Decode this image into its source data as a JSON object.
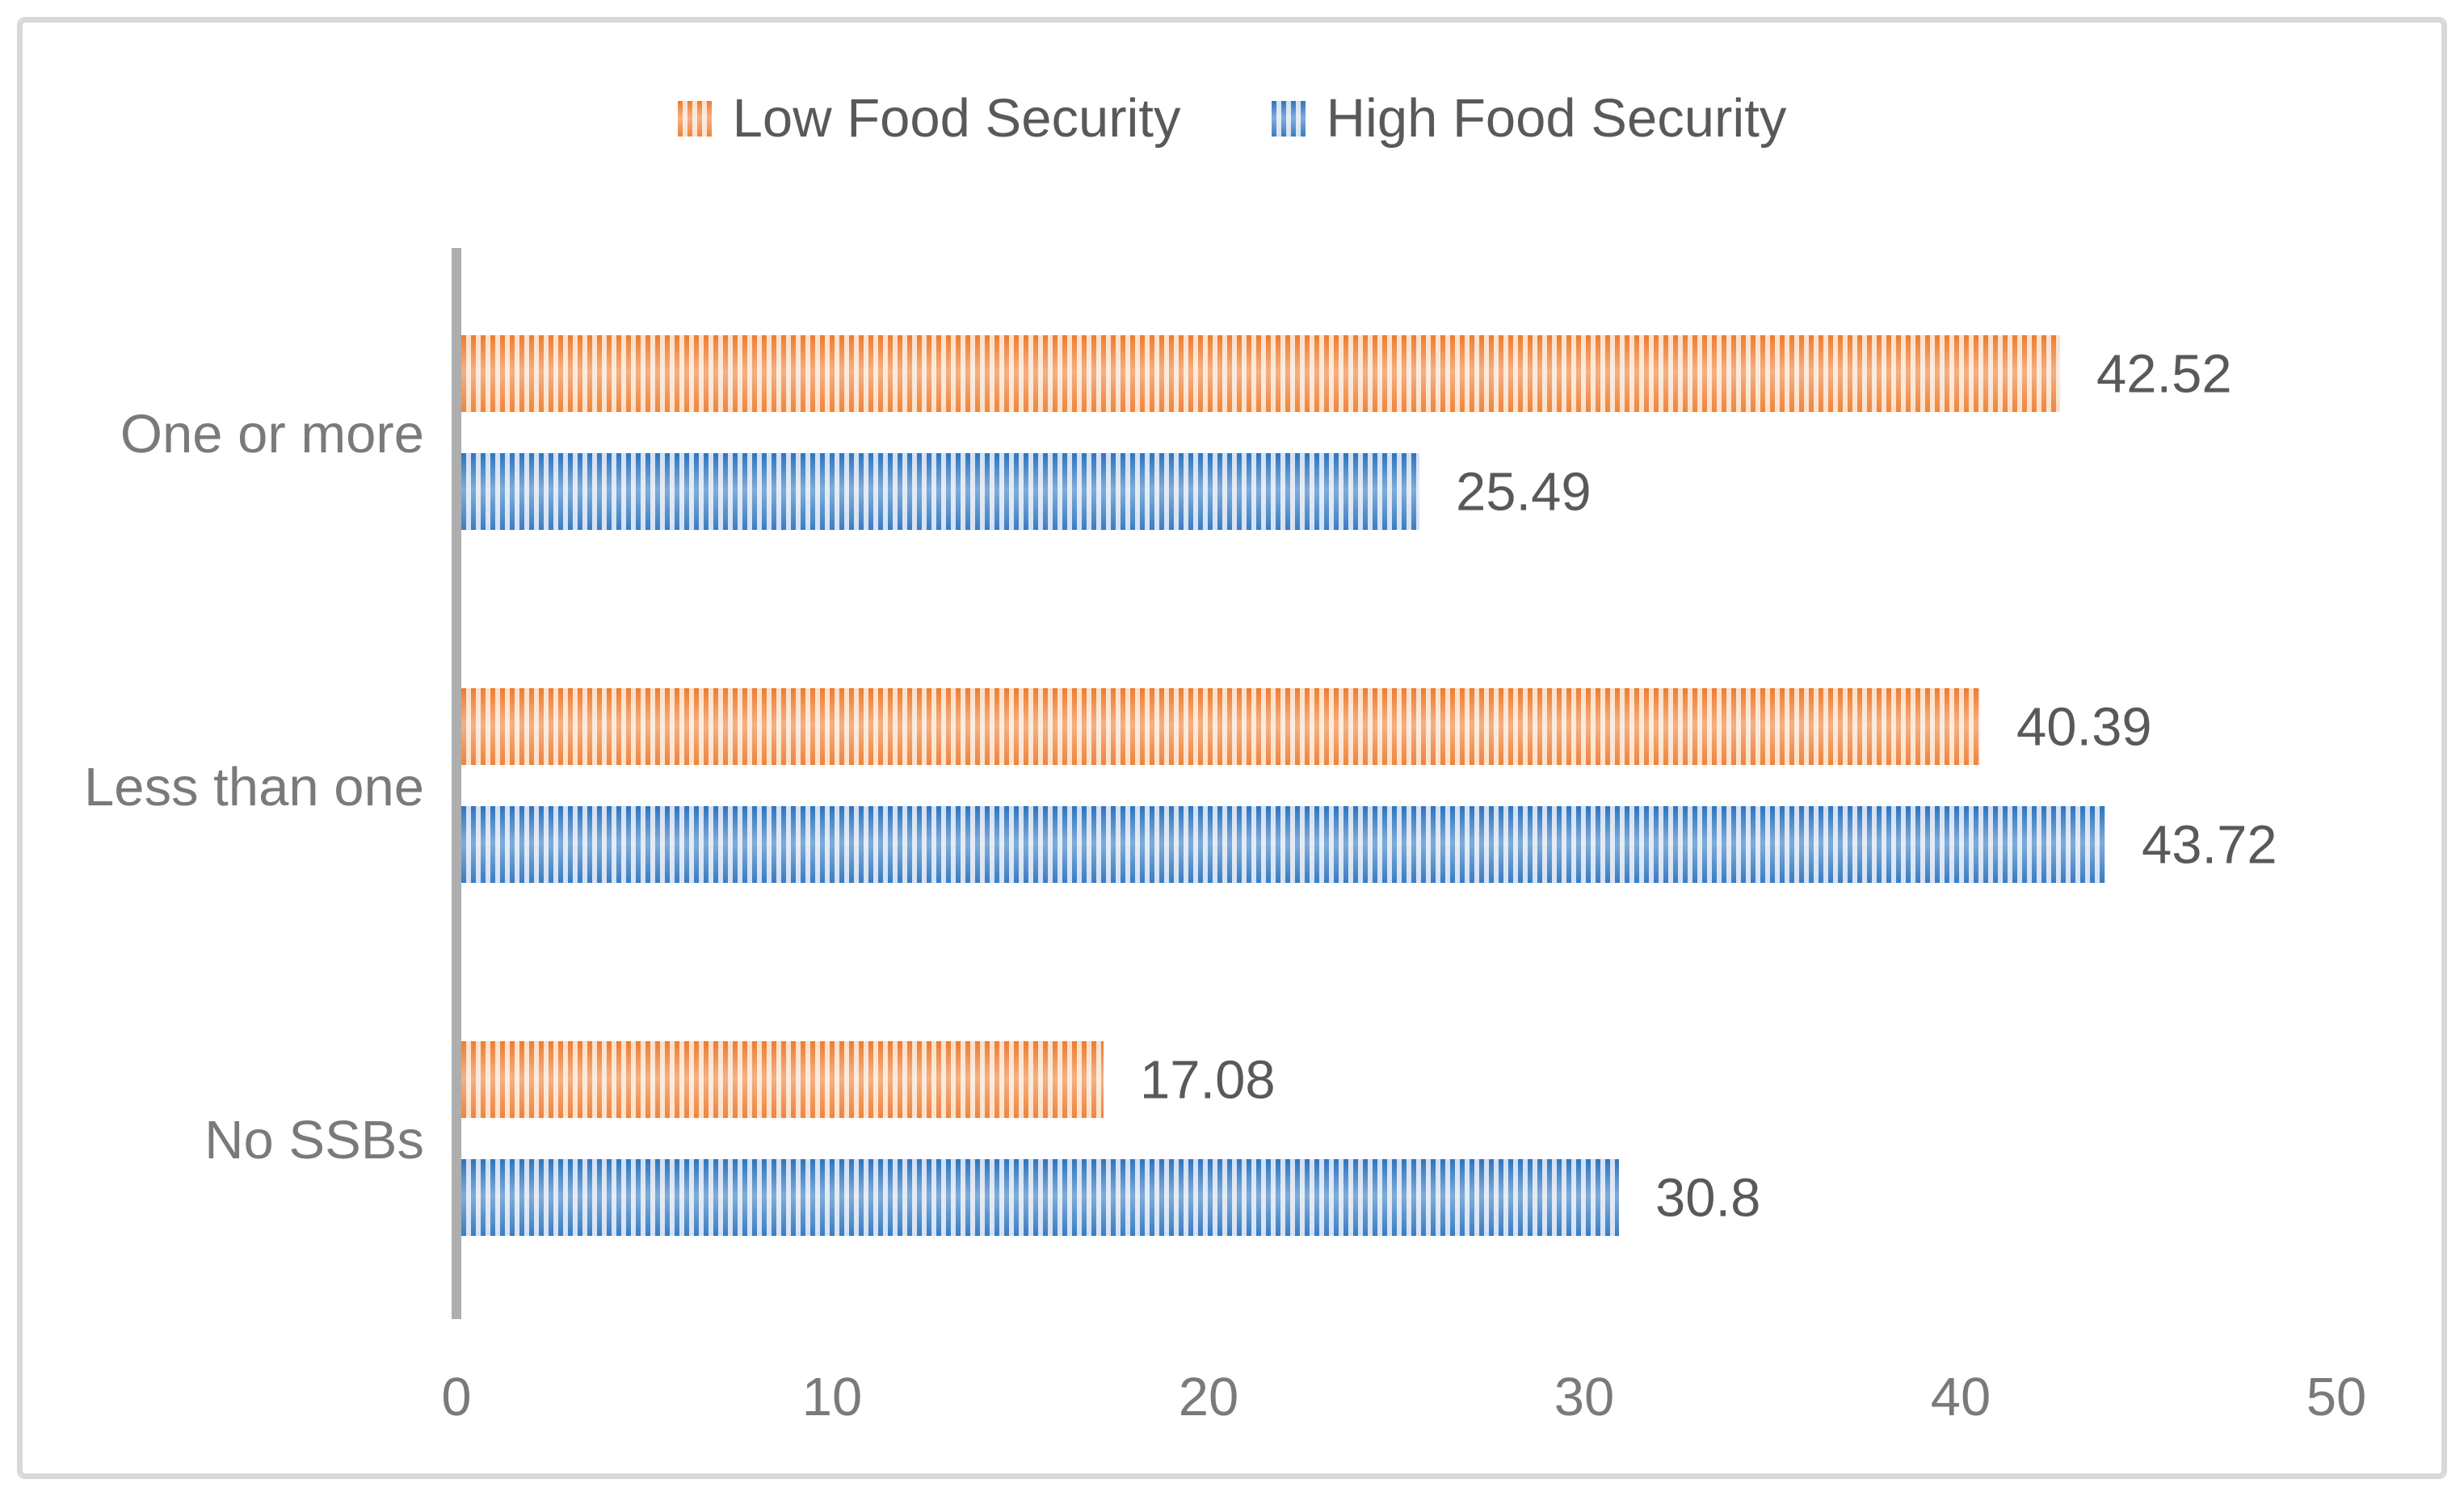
{
  "chart_data": {
    "type": "bar",
    "orientation": "horizontal",
    "title": "",
    "xlabel": "",
    "ylabel": "",
    "categories": [
      "One or more",
      "Less than one",
      "No SSBs"
    ],
    "series": [
      {
        "name": "Low Food Security",
        "values": [
          42.52,
          40.39,
          17.08
        ],
        "color": "#ED7D31",
        "light_color": "#FBDFC9",
        "pattern": "vertical-stripes"
      },
      {
        "name": "High Food Security",
        "values": [
          25.49,
          43.72,
          30.8
        ],
        "color": "#2E75BE",
        "light_color": "#D2DFF2",
        "pattern": "vertical-stripes"
      }
    ],
    "data_labels": [
      [
        "42.52",
        "25.49"
      ],
      [
        "40.39",
        "43.72"
      ],
      [
        "17.08",
        "30.8"
      ]
    ],
    "xlim": [
      0,
      50
    ],
    "xticks": [
      "0",
      "10",
      "20",
      "30",
      "40",
      "50"
    ],
    "legend_position": "top-center",
    "grid": false,
    "axis_color": "#AEAEAE",
    "frame_color": "#D9D9D9",
    "data_label_color": "#595959",
    "tick_label_color": "#7A7A7A"
  }
}
